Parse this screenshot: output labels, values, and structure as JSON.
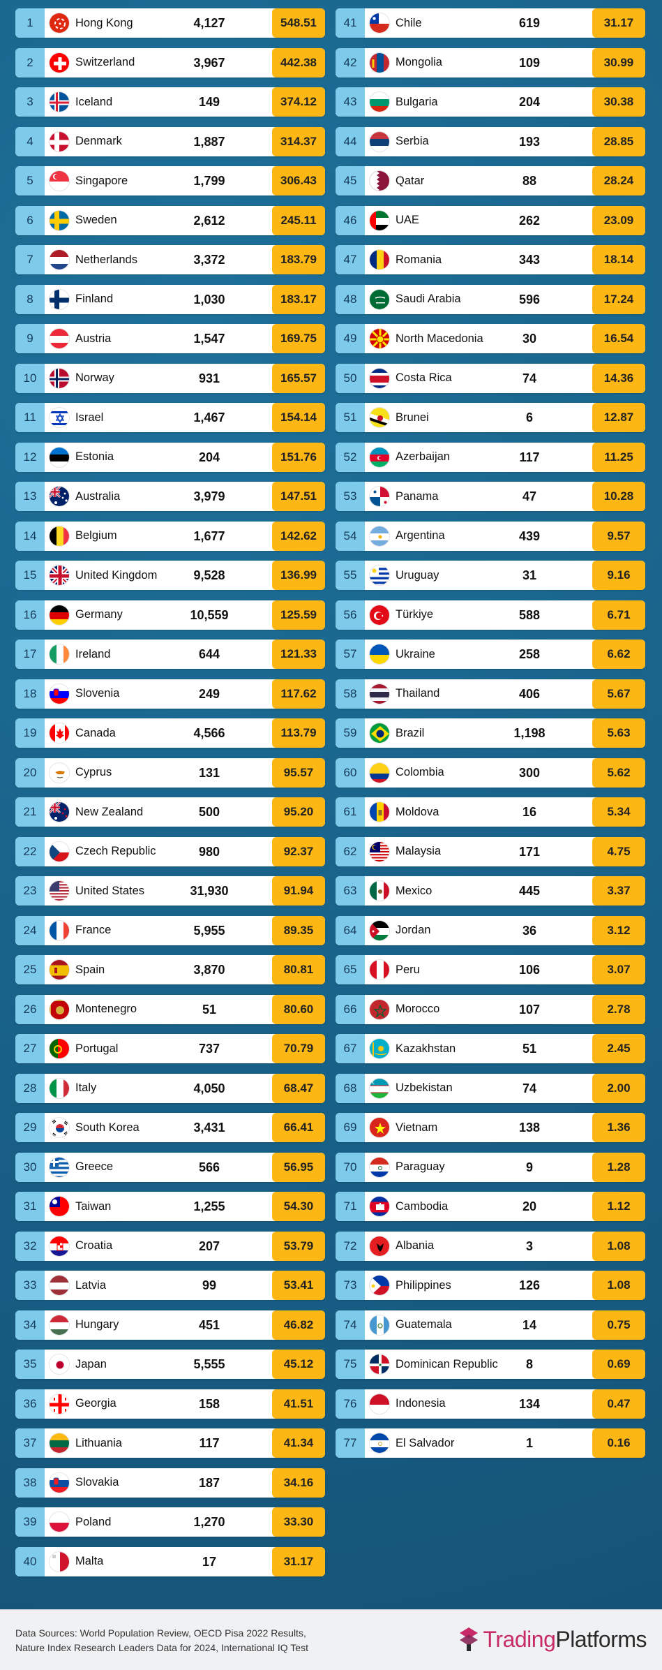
{
  "columns": [
    [
      {
        "rank": "1",
        "country": "Hong Kong",
        "population": "4,127",
        "score": "548.51",
        "flag": "hong-kong",
        "flag_colors": [
          "#de2910",
          "#ffffff"
        ]
      },
      {
        "rank": "2",
        "country": "Switzerland",
        "population": "3,967",
        "score": "442.38",
        "flag": "switzerland",
        "flag_colors": [
          "#ff0000",
          "#ffffff"
        ]
      },
      {
        "rank": "3",
        "country": "Iceland",
        "population": "149",
        "score": "374.12",
        "flag": "iceland",
        "flag_colors": [
          "#02529c",
          "#ffffff",
          "#dc1e35"
        ]
      },
      {
        "rank": "4",
        "country": "Denmark",
        "population": "1,887",
        "score": "314.37",
        "flag": "denmark",
        "flag_colors": [
          "#c8102e",
          "#ffffff"
        ]
      },
      {
        "rank": "5",
        "country": "Singapore",
        "population": "1,799",
        "score": "306.43",
        "flag": "singapore",
        "flag_colors": [
          "#ef3340",
          "#ffffff"
        ]
      },
      {
        "rank": "6",
        "country": "Sweden",
        "population": "2,612",
        "score": "245.11",
        "flag": "sweden",
        "flag_colors": [
          "#006aa7",
          "#fecc00"
        ]
      },
      {
        "rank": "7",
        "country": "Netherlands",
        "population": "3,372",
        "score": "183.79",
        "flag": "netherlands",
        "flag_colors": [
          "#ae1c28",
          "#ffffff",
          "#21468b"
        ]
      },
      {
        "rank": "8",
        "country": "Finland",
        "population": "1,030",
        "score": "183.17",
        "flag": "finland",
        "flag_colors": [
          "#ffffff",
          "#002f6c"
        ]
      },
      {
        "rank": "9",
        "country": "Austria",
        "population": "1,547",
        "score": "169.75",
        "flag": "austria",
        "flag_colors": [
          "#ed2939",
          "#ffffff",
          "#ed2939"
        ]
      },
      {
        "rank": "10",
        "country": "Norway",
        "population": "931",
        "score": "165.57",
        "flag": "norway",
        "flag_colors": [
          "#ba0c2f",
          "#ffffff",
          "#00205b"
        ]
      },
      {
        "rank": "11",
        "country": "Israel",
        "population": "1,467",
        "score": "154.14",
        "flag": "israel",
        "flag_colors": [
          "#ffffff",
          "#0038b8"
        ]
      },
      {
        "rank": "12",
        "country": "Estonia",
        "population": "204",
        "score": "151.76",
        "flag": "estonia",
        "flag_colors": [
          "#0072ce",
          "#000000",
          "#ffffff"
        ]
      },
      {
        "rank": "13",
        "country": "Australia",
        "population": "3,979",
        "score": "147.51",
        "flag": "australia",
        "flag_colors": [
          "#012169",
          "#ffffff",
          "#e4002b"
        ]
      },
      {
        "rank": "14",
        "country": "Belgium",
        "population": "1,677",
        "score": "142.62",
        "flag": "belgium",
        "flag_colors": [
          "#000000",
          "#fdda24",
          "#ef3340"
        ]
      },
      {
        "rank": "15",
        "country": "United Kingdom",
        "population": "9,528",
        "score": "136.99",
        "flag": "united-kingdom",
        "flag_colors": [
          "#012169",
          "#ffffff",
          "#c8102e"
        ]
      },
      {
        "rank": "16",
        "country": "Germany",
        "population": "10,559",
        "score": "125.59",
        "flag": "germany",
        "flag_colors": [
          "#000000",
          "#dd0000",
          "#ffce00"
        ]
      },
      {
        "rank": "17",
        "country": "Ireland",
        "population": "644",
        "score": "121.33",
        "flag": "ireland",
        "flag_colors": [
          "#169b62",
          "#ffffff",
          "#ff883e"
        ]
      },
      {
        "rank": "18",
        "country": "Slovenia",
        "population": "249",
        "score": "117.62",
        "flag": "slovenia",
        "flag_colors": [
          "#ffffff",
          "#0000ff",
          "#ff0000"
        ]
      },
      {
        "rank": "19",
        "country": "Canada",
        "population": "4,566",
        "score": "113.79",
        "flag": "canada",
        "flag_colors": [
          "#ff0000",
          "#ffffff",
          "#ff0000"
        ]
      },
      {
        "rank": "20",
        "country": "Cyprus",
        "population": "131",
        "score": "95.57",
        "flag": "cyprus",
        "flag_colors": [
          "#ffffff",
          "#d57800"
        ]
      },
      {
        "rank": "21",
        "country": "New Zealand",
        "population": "500",
        "score": "95.20",
        "flag": "new-zealand",
        "flag_colors": [
          "#012169",
          "#ffffff",
          "#c8102e"
        ]
      },
      {
        "rank": "22",
        "country": "Czech Republic",
        "population": "980",
        "score": "92.37",
        "flag": "czech-republic",
        "flag_colors": [
          "#ffffff",
          "#d7141a",
          "#11457e"
        ]
      },
      {
        "rank": "23",
        "country": "United States",
        "population": "31,930",
        "score": "91.94",
        "flag": "united-states",
        "flag_colors": [
          "#b22234",
          "#ffffff",
          "#3c3b6e"
        ]
      },
      {
        "rank": "24",
        "country": "France",
        "population": "5,955",
        "score": "89.35",
        "flag": "france",
        "flag_colors": [
          "#0055a4",
          "#ffffff",
          "#ef4135"
        ]
      },
      {
        "rank": "25",
        "country": "Spain",
        "population": "3,870",
        "score": "80.81",
        "flag": "spain",
        "flag_colors": [
          "#aa151b",
          "#f1bf00",
          "#aa151b"
        ]
      },
      {
        "rank": "26",
        "country": "Montenegro",
        "population": "51",
        "score": "80.60",
        "flag": "montenegro",
        "flag_colors": [
          "#c40308",
          "#d3ae3b"
        ]
      },
      {
        "rank": "27",
        "country": "Portugal",
        "population": "737",
        "score": "70.79",
        "flag": "portugal",
        "flag_colors": [
          "#006600",
          "#ff0000",
          "#ffcc00"
        ]
      },
      {
        "rank": "28",
        "country": "Italy",
        "population": "4,050",
        "score": "68.47",
        "flag": "italy",
        "flag_colors": [
          "#009246",
          "#ffffff",
          "#ce2b37"
        ]
      },
      {
        "rank": "29",
        "country": "South Korea",
        "population": "3,431",
        "score": "66.41",
        "flag": "south-korea",
        "flag_colors": [
          "#ffffff",
          "#cd2e3a",
          "#0047a0"
        ]
      },
      {
        "rank": "30",
        "country": "Greece",
        "population": "566",
        "score": "56.95",
        "flag": "greece",
        "flag_colors": [
          "#0d5eaf",
          "#ffffff"
        ]
      },
      {
        "rank": "31",
        "country": "Taiwan",
        "population": "1,255",
        "score": "54.30",
        "flag": "taiwan",
        "flag_colors": [
          "#fe0000",
          "#000095",
          "#ffffff"
        ]
      },
      {
        "rank": "32",
        "country": "Croatia",
        "population": "207",
        "score": "53.79",
        "flag": "croatia",
        "flag_colors": [
          "#ff0000",
          "#ffffff",
          "#171796"
        ]
      },
      {
        "rank": "33",
        "country": "Latvia",
        "population": "99",
        "score": "53.41",
        "flag": "latvia",
        "flag_colors": [
          "#9e3039",
          "#ffffff",
          "#9e3039"
        ]
      },
      {
        "rank": "34",
        "country": "Hungary",
        "population": "451",
        "score": "46.82",
        "flag": "hungary",
        "flag_colors": [
          "#ce2939",
          "#ffffff",
          "#477050"
        ]
      },
      {
        "rank": "35",
        "country": "Japan",
        "population": "5,555",
        "score": "45.12",
        "flag": "japan",
        "flag_colors": [
          "#ffffff",
          "#bc002d"
        ]
      },
      {
        "rank": "36",
        "country": "Georgia",
        "population": "158",
        "score": "41.51",
        "flag": "georgia",
        "flag_colors": [
          "#ffffff",
          "#ff0000"
        ]
      },
      {
        "rank": "37",
        "country": "Lithuania",
        "population": "117",
        "score": "41.34",
        "flag": "lithuania",
        "flag_colors": [
          "#fdb913",
          "#006a44",
          "#c1272d"
        ]
      },
      {
        "rank": "38",
        "country": "Slovakia",
        "population": "187",
        "score": "34.16",
        "flag": "slovakia",
        "flag_colors": [
          "#ffffff",
          "#0b4ea2",
          "#ee1c25"
        ]
      },
      {
        "rank": "39",
        "country": "Poland",
        "population": "1,270",
        "score": "33.30",
        "flag": "poland",
        "flag_colors": [
          "#ffffff",
          "#dc143c"
        ]
      },
      {
        "rank": "40",
        "country": "Malta",
        "population": "17",
        "score": "31.17",
        "flag": "malta",
        "flag_colors": [
          "#ffffff",
          "#cf142b"
        ]
      }
    ],
    [
      {
        "rank": "41",
        "country": "Chile",
        "population": "619",
        "score": "31.17",
        "flag": "chile",
        "flag_colors": [
          "#ffffff",
          "#d52b1e",
          "#0039a6"
        ]
      },
      {
        "rank": "42",
        "country": "Mongolia",
        "population": "109",
        "score": "30.99",
        "flag": "mongolia",
        "flag_colors": [
          "#c4272f",
          "#015197",
          "#c4272f"
        ]
      },
      {
        "rank": "43",
        "country": "Bulgaria",
        "population": "204",
        "score": "30.38",
        "flag": "bulgaria",
        "flag_colors": [
          "#ffffff",
          "#00966e",
          "#d62612"
        ]
      },
      {
        "rank": "44",
        "country": "Serbia",
        "population": "193",
        "score": "28.85",
        "flag": "serbia",
        "flag_colors": [
          "#c6363c",
          "#0c4076",
          "#ffffff"
        ]
      },
      {
        "rank": "45",
        "country": "Qatar",
        "population": "88",
        "score": "28.24",
        "flag": "qatar",
        "flag_colors": [
          "#ffffff",
          "#8a1538"
        ]
      },
      {
        "rank": "46",
        "country": "UAE",
        "population": "262",
        "score": "23.09",
        "flag": "uae",
        "flag_colors": [
          "#00732f",
          "#ffffff",
          "#000000",
          "#ff0000"
        ]
      },
      {
        "rank": "47",
        "country": "Romania",
        "population": "343",
        "score": "18.14",
        "flag": "romania",
        "flag_colors": [
          "#002b7f",
          "#fcd116",
          "#ce1126"
        ]
      },
      {
        "rank": "48",
        "country": "Saudi Arabia",
        "population": "596",
        "score": "17.24",
        "flag": "saudi-arabia",
        "flag_colors": [
          "#006c35",
          "#ffffff"
        ]
      },
      {
        "rank": "49",
        "country": "North Macedonia",
        "population": "30",
        "score": "16.54",
        "flag": "north-macedonia",
        "flag_colors": [
          "#d20000",
          "#ffe600"
        ]
      },
      {
        "rank": "50",
        "country": "Costa Rica",
        "population": "74",
        "score": "14.36",
        "flag": "costa-rica",
        "flag_colors": [
          "#002b7f",
          "#ffffff",
          "#ce1126"
        ]
      },
      {
        "rank": "51",
        "country": "Brunei",
        "population": "6",
        "score": "12.87",
        "flag": "brunei",
        "flag_colors": [
          "#f7e017",
          "#ffffff",
          "#000000"
        ]
      },
      {
        "rank": "52",
        "country": "Azerbaijan",
        "population": "117",
        "score": "11.25",
        "flag": "azerbaijan",
        "flag_colors": [
          "#0092bc",
          "#e4002b",
          "#00af66"
        ]
      },
      {
        "rank": "53",
        "country": "Panama",
        "population": "47",
        "score": "10.28",
        "flag": "panama",
        "flag_colors": [
          "#ffffff",
          "#d21034",
          "#005293"
        ]
      },
      {
        "rank": "54",
        "country": "Argentina",
        "population": "439",
        "score": "9.57",
        "flag": "argentina",
        "flag_colors": [
          "#74acdf",
          "#ffffff",
          "#74acdf"
        ]
      },
      {
        "rank": "55",
        "country": "Uruguay",
        "population": "31",
        "score": "9.16",
        "flag": "uruguay",
        "flag_colors": [
          "#ffffff",
          "#0038a8",
          "#fcd116"
        ]
      },
      {
        "rank": "56",
        "country": "Türkiye",
        "population": "588",
        "score": "6.71",
        "flag": "turkiye",
        "flag_colors": [
          "#e30a17",
          "#ffffff"
        ]
      },
      {
        "rank": "57",
        "country": "Ukraine",
        "population": "258",
        "score": "6.62",
        "flag": "ukraine",
        "flag_colors": [
          "#0057b7",
          "#ffd700"
        ]
      },
      {
        "rank": "58",
        "country": "Thailand",
        "population": "406",
        "score": "5.67",
        "flag": "thailand",
        "flag_colors": [
          "#a51931",
          "#f4f5f8",
          "#2d2a4a"
        ]
      },
      {
        "rank": "59",
        "country": "Brazil",
        "population": "1,198",
        "score": "5.63",
        "flag": "brazil",
        "flag_colors": [
          "#009c3b",
          "#ffdf00",
          "#002776"
        ]
      },
      {
        "rank": "60",
        "country": "Colombia",
        "population": "300",
        "score": "5.62",
        "flag": "colombia",
        "flag_colors": [
          "#fcd116",
          "#003893",
          "#ce1126"
        ]
      },
      {
        "rank": "61",
        "country": "Moldova",
        "population": "16",
        "score": "5.34",
        "flag": "moldova",
        "flag_colors": [
          "#0046ae",
          "#ffd200",
          "#cc092f"
        ]
      },
      {
        "rank": "62",
        "country": "Malaysia",
        "population": "171",
        "score": "4.75",
        "flag": "malaysia",
        "flag_colors": [
          "#cc0001",
          "#ffffff",
          "#010066",
          "#ffcc00"
        ]
      },
      {
        "rank": "63",
        "country": "Mexico",
        "population": "445",
        "score": "3.37",
        "flag": "mexico",
        "flag_colors": [
          "#006847",
          "#ffffff",
          "#ce1126"
        ]
      },
      {
        "rank": "64",
        "country": "Jordan",
        "population": "36",
        "score": "3.12",
        "flag": "jordan",
        "flag_colors": [
          "#000000",
          "#ffffff",
          "#007a3d",
          "#ce1126"
        ]
      },
      {
        "rank": "65",
        "country": "Peru",
        "population": "106",
        "score": "3.07",
        "flag": "peru",
        "flag_colors": [
          "#d91023",
          "#ffffff",
          "#d91023"
        ]
      },
      {
        "rank": "66",
        "country": "Morocco",
        "population": "107",
        "score": "2.78",
        "flag": "morocco",
        "flag_colors": [
          "#c1272d",
          "#006233"
        ]
      },
      {
        "rank": "67",
        "country": "Kazakhstan",
        "population": "51",
        "score": "2.45",
        "flag": "kazakhstan",
        "flag_colors": [
          "#00afca",
          "#fec50c"
        ]
      },
      {
        "rank": "68",
        "country": "Uzbekistan",
        "population": "74",
        "score": "2.00",
        "flag": "uzbekistan",
        "flag_colors": [
          "#1eb53a",
          "#ffffff",
          "#0099b5",
          "#ce1126"
        ]
      },
      {
        "rank": "69",
        "country": "Vietnam",
        "population": "138",
        "score": "1.36",
        "flag": "vietnam",
        "flag_colors": [
          "#da251d",
          "#ffff00"
        ]
      },
      {
        "rank": "70",
        "country": "Paraguay",
        "population": "9",
        "score": "1.28",
        "flag": "paraguay",
        "flag_colors": [
          "#d52b1e",
          "#ffffff",
          "#0038a8"
        ]
      },
      {
        "rank": "71",
        "country": "Cambodia",
        "population": "20",
        "score": "1.12",
        "flag": "cambodia",
        "flag_colors": [
          "#032ea1",
          "#e00025",
          "#ffffff"
        ]
      },
      {
        "rank": "72",
        "country": "Albania",
        "population": "3",
        "score": "1.08",
        "flag": "albania",
        "flag_colors": [
          "#e41e20",
          "#000000"
        ]
      },
      {
        "rank": "73",
        "country": "Philippines",
        "population": "126",
        "score": "1.08",
        "flag": "philippines",
        "flag_colors": [
          "#0038a8",
          "#ce1126",
          "#ffffff",
          "#fcd116"
        ]
      },
      {
        "rank": "74",
        "country": "Guatemala",
        "population": "14",
        "score": "0.75",
        "flag": "guatemala",
        "flag_colors": [
          "#4997d0",
          "#ffffff",
          "#4997d0"
        ]
      },
      {
        "rank": "75",
        "country": "Dominican Republic",
        "population": "8",
        "score": "0.69",
        "flag": "dominican-republic",
        "flag_colors": [
          "#002d62",
          "#ce1126",
          "#ffffff"
        ]
      },
      {
        "rank": "76",
        "country": "Indonesia",
        "population": "134",
        "score": "0.47",
        "flag": "indonesia",
        "flag_colors": [
          "#ce1126",
          "#ffffff"
        ]
      },
      {
        "rank": "77",
        "country": "El Salvador",
        "population": "1",
        "score": "0.16",
        "flag": "el-salvador",
        "flag_colors": [
          "#0047ab",
          "#ffffff",
          "#0047ab"
        ]
      }
    ]
  ],
  "footer": {
    "sources_line1": "Data Sources: World Population Review, OECD Pisa 2022 Results,",
    "sources_line2": "Nature Index Research Leaders Data for 2024, International IQ Test",
    "brand_part1": "Trading",
    "brand_part2": "Platforms",
    "brand_colors": [
      "#c72a67",
      "#2a2a2a"
    ]
  },
  "colors": {
    "background": "#1a6590",
    "rank_badge": "#7ecaea",
    "score_badge": "#fdb714",
    "row": "#ffffff"
  }
}
